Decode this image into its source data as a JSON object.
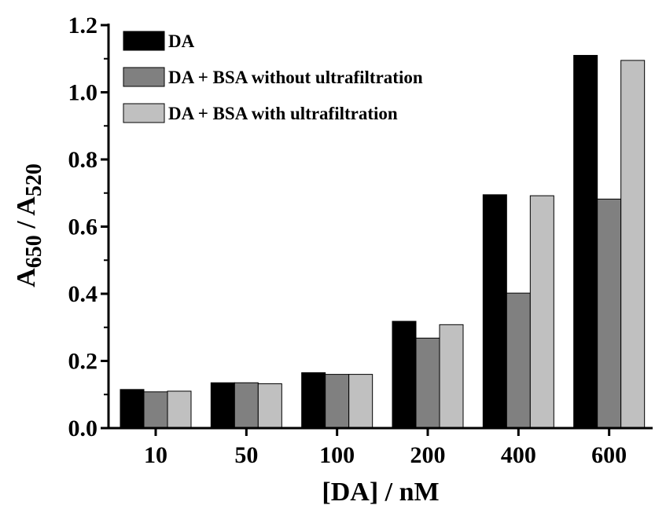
{
  "chart_data": {
    "type": "bar",
    "categories": [
      "10",
      "50",
      "100",
      "200",
      "400",
      "600"
    ],
    "series": [
      {
        "name": "DA",
        "color": "#000000",
        "values": [
          0.115,
          0.135,
          0.165,
          0.318,
          0.695,
          1.11
        ]
      },
      {
        "name": "DA + BSA without ultrafiltration",
        "color": "#808080",
        "values": [
          0.108,
          0.135,
          0.16,
          0.268,
          0.402,
          0.682
        ]
      },
      {
        "name": "DA + BSA with ultrafiltration",
        "color": "#c0c0c0",
        "values": [
          0.11,
          0.132,
          0.16,
          0.308,
          0.692,
          1.095
        ]
      }
    ],
    "xlabel": "[DA] / nM",
    "ylabel": {
      "main": "A",
      "sub1": "650",
      "sep": " / A",
      "sub2": "520"
    },
    "ylim": [
      0,
      1.2
    ],
    "yticks": [
      "0.0",
      "0.2",
      "0.4",
      "0.6",
      "0.8",
      "1.0",
      "1.2"
    ],
    "grid": false,
    "legend_position": "top-left"
  }
}
